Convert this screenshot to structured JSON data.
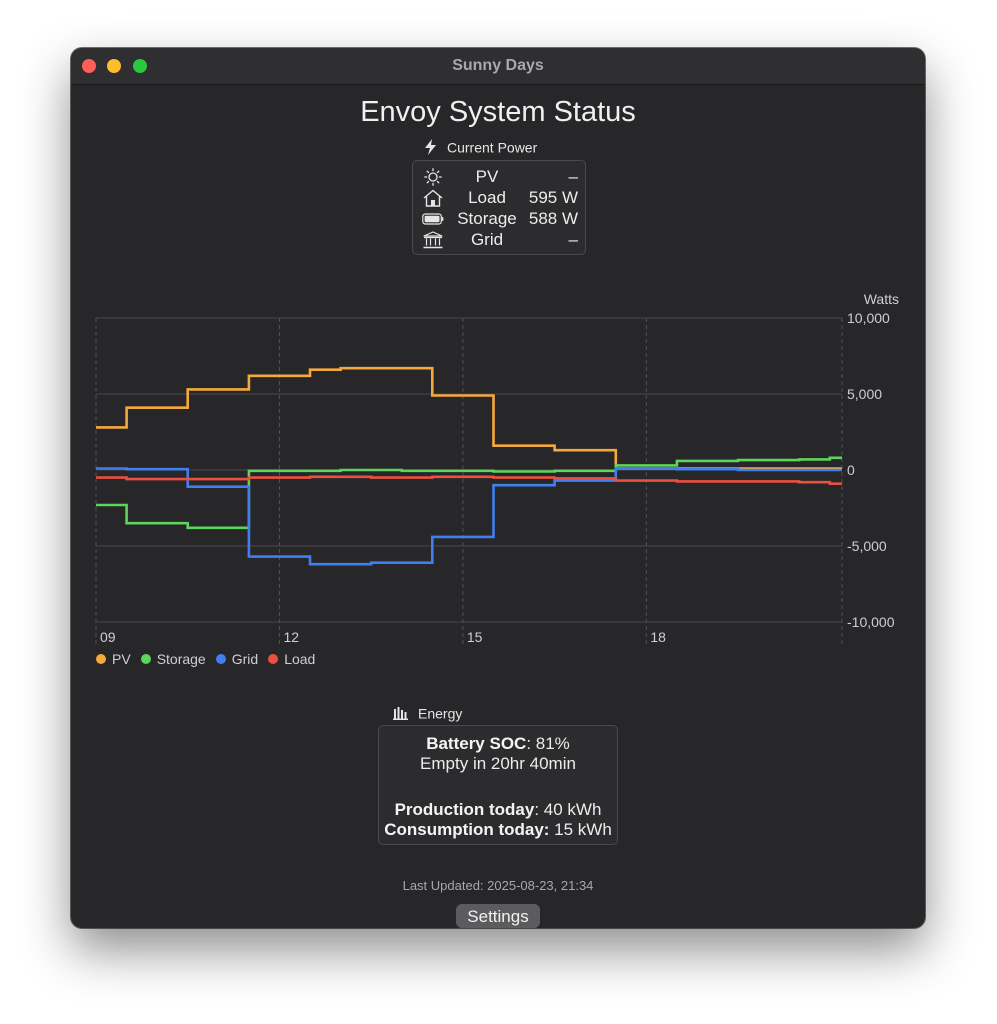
{
  "window": {
    "title": "Sunny Days"
  },
  "page": {
    "title": "Envoy System Status"
  },
  "current_power": {
    "heading": "Current Power",
    "icon": "bolt-icon",
    "rows": [
      {
        "icon": "sun-icon",
        "label": "PV",
        "value": "–"
      },
      {
        "icon": "house-icon",
        "label": "Load",
        "value": "595 W"
      },
      {
        "icon": "battery-icon",
        "label": "Storage",
        "value": "588 W"
      },
      {
        "icon": "bank-icon",
        "label": "Grid",
        "value": "–"
      }
    ]
  },
  "chart_data": {
    "type": "line",
    "step": true,
    "ylabel": "Watts",
    "ylim": [
      -10000,
      10000
    ],
    "y_ticks": [
      10000,
      5000,
      0,
      -5000,
      -10000
    ],
    "y_tick_labels": [
      "10,000",
      "5,000",
      "0",
      "-5,000",
      "-10,000"
    ],
    "xlim": [
      9,
      21.2
    ],
    "x_ticks": [
      9,
      12,
      15,
      18
    ],
    "x_tick_labels": [
      "09",
      "12",
      "15",
      "18"
    ],
    "grid": true,
    "legend": "bottom-left",
    "x": [
      9,
      9.5,
      10,
      10.5,
      11,
      11.5,
      12,
      12.5,
      13,
      13.5,
      14,
      14.5,
      15,
      15.5,
      16,
      16.5,
      17,
      17.5,
      18,
      18.5,
      19,
      19.5,
      20,
      20.5,
      21
    ],
    "series": [
      {
        "name": "PV",
        "color": "#f5a83b",
        "values": [
          2800,
          4100,
          4100,
          5300,
          5300,
          6200,
          6200,
          6600,
          6700,
          6700,
          6700,
          4900,
          4900,
          1600,
          1600,
          1300,
          1300,
          100,
          100,
          100,
          100,
          100,
          100,
          100,
          100
        ]
      },
      {
        "name": "Storage",
        "color": "#5dd45a",
        "values": [
          -2300,
          -3500,
          -3500,
          -3800,
          -3800,
          -50,
          -50,
          -50,
          0,
          0,
          -50,
          -50,
          -50,
          -100,
          -100,
          -50,
          -50,
          300,
          300,
          600,
          600,
          650,
          650,
          700,
          800
        ]
      },
      {
        "name": "Grid",
        "color": "#3f7ff0",
        "values": [
          100,
          50,
          50,
          -1100,
          -1100,
          -5700,
          -5700,
          -6200,
          -6200,
          -6100,
          -6100,
          -4400,
          -4400,
          -1000,
          -1000,
          -700,
          -700,
          100,
          100,
          50,
          50,
          0,
          0,
          0,
          0
        ]
      },
      {
        "name": "Load",
        "color": "#ea4f3f",
        "values": [
          -500,
          -600,
          -600,
          -600,
          -600,
          -500,
          -500,
          -450,
          -450,
          -500,
          -500,
          -450,
          -450,
          -500,
          -500,
          -550,
          -550,
          -700,
          -700,
          -750,
          -750,
          -750,
          -750,
          -800,
          -900
        ]
      }
    ]
  },
  "energy": {
    "heading": "Energy",
    "icon": "bar-chart-icon",
    "battery_soc_label": "Battery SOC",
    "battery_soc_value": ": 81%",
    "empty_in": "Empty in 20hr 40min",
    "production_label": "Production today",
    "production_value": ": 40 kWh",
    "consumption_label": "Consumption today:",
    "consumption_value": " 15 kWh"
  },
  "last_updated": "Last Updated: 2025-08-23, 21:34",
  "settings_label": "Settings"
}
